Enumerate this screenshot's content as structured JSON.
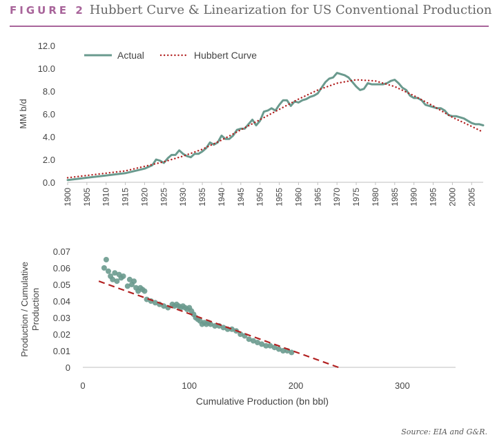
{
  "header": {
    "figure_label": "FIGURE 2",
    "title": "Hubbert Curve & Linearization for US Conventional Production"
  },
  "footer": {
    "source": "Source: EIA and G&R."
  },
  "colors": {
    "accent": "#a8649a",
    "actual": "#6a9a8e",
    "hubbert": "#b22222",
    "axis": "#bfbfbf"
  },
  "chart_data": [
    {
      "type": "line",
      "title": "",
      "xlabel": "",
      "ylabel": "MM b/d",
      "xlim": [
        1900,
        2008
      ],
      "ylim": [
        0,
        12
      ],
      "yticks": [
        0,
        2,
        4,
        6,
        8,
        10,
        12
      ],
      "ytick_labels": [
        "0.0",
        "2.0",
        "4.0",
        "6.0",
        "8.0",
        "10.0",
        "12.0"
      ],
      "xticks": [
        1900,
        1905,
        1910,
        1915,
        1920,
        1925,
        1930,
        1935,
        1940,
        1945,
        1950,
        1955,
        1960,
        1965,
        1970,
        1975,
        1980,
        1985,
        1990,
        1995,
        2000,
        2005
      ],
      "legend_position": "top-left",
      "grid": false,
      "series": [
        {
          "name": "Actual",
          "style": "solid",
          "x": [
            1900,
            1905,
            1910,
            1915,
            1920,
            1922,
            1923,
            1924,
            1925,
            1926,
            1927,
            1928,
            1929,
            1930,
            1931,
            1932,
            1933,
            1934,
            1935,
            1936,
            1937,
            1938,
            1939,
            1940,
            1941,
            1942,
            1943,
            1944,
            1945,
            1946,
            1947,
            1948,
            1949,
            1950,
            1951,
            1952,
            1953,
            1954,
            1955,
            1956,
            1957,
            1958,
            1959,
            1960,
            1961,
            1962,
            1963,
            1964,
            1965,
            1966,
            1967,
            1968,
            1969,
            1970,
            1971,
            1972,
            1973,
            1974,
            1975,
            1976,
            1977,
            1978,
            1979,
            1980,
            1981,
            1982,
            1983,
            1984,
            1985,
            1986,
            1987,
            1988,
            1989,
            1990,
            1991,
            1992,
            1993,
            1994,
            1995,
            1996,
            1997,
            1998,
            1999,
            2000,
            2001,
            2002,
            2003,
            2004,
            2005,
            2006,
            2007,
            2008
          ],
          "y": [
            0.2,
            0.4,
            0.6,
            0.8,
            1.2,
            1.5,
            2.0,
            1.9,
            1.7,
            2.1,
            2.4,
            2.4,
            2.8,
            2.5,
            2.3,
            2.2,
            2.5,
            2.5,
            2.7,
            3.0,
            3.5,
            3.3,
            3.5,
            4.1,
            3.8,
            3.8,
            4.1,
            4.6,
            4.7,
            4.7,
            5.1,
            5.5,
            5.0,
            5.4,
            6.2,
            6.3,
            6.5,
            6.3,
            6.8,
            7.2,
            7.2,
            6.7,
            7.1,
            7.0,
            7.2,
            7.3,
            7.5,
            7.6,
            7.8,
            8.3,
            8.8,
            9.1,
            9.2,
            9.6,
            9.5,
            9.4,
            9.2,
            8.8,
            8.4,
            8.1,
            8.2,
            8.7,
            8.6,
            8.6,
            8.6,
            8.6,
            8.7,
            8.9,
            9.0,
            8.7,
            8.3,
            8.1,
            7.6,
            7.4,
            7.4,
            7.2,
            6.8,
            6.7,
            6.6,
            6.5,
            6.5,
            6.3,
            5.9,
            5.8,
            5.8,
            5.7,
            5.6,
            5.4,
            5.2,
            5.1,
            5.1,
            5.0
          ]
        },
        {
          "name": "Hubbert Curve",
          "style": "dotted",
          "x": [
            1900,
            1905,
            1910,
            1915,
            1920,
            1925,
            1930,
            1935,
            1940,
            1945,
            1950,
            1955,
            1960,
            1965,
            1970,
            1975,
            1980,
            1985,
            1990,
            1995,
            2000,
            2005,
            2008
          ],
          "y": [
            0.4,
            0.6,
            0.8,
            1.0,
            1.4,
            1.8,
            2.3,
            2.9,
            3.7,
            4.6,
            5.5,
            6.4,
            7.3,
            8.1,
            8.7,
            9.0,
            8.9,
            8.4,
            7.6,
            6.7,
            5.7,
            4.9,
            4.4
          ]
        }
      ]
    },
    {
      "type": "scatter",
      "title": "",
      "xlabel": "Cumulative Production (bn bbl)",
      "ylabel": "Production / Cumulative Production",
      "xlim": [
        0,
        350
      ],
      "ylim": [
        0,
        0.07
      ],
      "xticks": [
        0,
        100,
        200,
        300
      ],
      "yticks": [
        0,
        0.01,
        0.02,
        0.03,
        0.04,
        0.05,
        0.06,
        0.07
      ],
      "ytick_labels": [
        "0",
        "0.01",
        "0.02",
        "0.03",
        "0.04",
        "0.05",
        "0.06",
        "0.07"
      ],
      "grid": false,
      "series": [
        {
          "name": "",
          "style": "points",
          "x": [
            20,
            22,
            24,
            26,
            28,
            30,
            32,
            34,
            36,
            38,
            42,
            44,
            46,
            48,
            50,
            52,
            54,
            56,
            58,
            60,
            64,
            68,
            72,
            76,
            80,
            84,
            86,
            88,
            90,
            92,
            94,
            96,
            98,
            100,
            102,
            104,
            106,
            108,
            110,
            112,
            114,
            116,
            118,
            120,
            124,
            128,
            132,
            136,
            140,
            144,
            148,
            152,
            156,
            160,
            164,
            168,
            172,
            176,
            180,
            184,
            188,
            192,
            196
          ],
          "y": [
            0.06,
            0.065,
            0.058,
            0.055,
            0.053,
            0.057,
            0.052,
            0.056,
            0.054,
            0.055,
            0.049,
            0.053,
            0.05,
            0.052,
            0.048,
            0.046,
            0.048,
            0.047,
            0.046,
            0.041,
            0.04,
            0.039,
            0.038,
            0.037,
            0.036,
            0.038,
            0.037,
            0.038,
            0.037,
            0.036,
            0.037,
            0.036,
            0.035,
            0.036,
            0.034,
            0.032,
            0.03,
            0.029,
            0.028,
            0.026,
            0.027,
            0.026,
            0.027,
            0.026,
            0.025,
            0.025,
            0.024,
            0.023,
            0.023,
            0.022,
            0.02,
            0.019,
            0.017,
            0.016,
            0.015,
            0.014,
            0.013,
            0.013,
            0.012,
            0.011,
            0.01,
            0.01,
            0.009
          ]
        },
        {
          "name": "",
          "style": "dashed",
          "x": [
            15,
            240
          ],
          "y": [
            0.052,
            0.0
          ]
        }
      ]
    }
  ]
}
